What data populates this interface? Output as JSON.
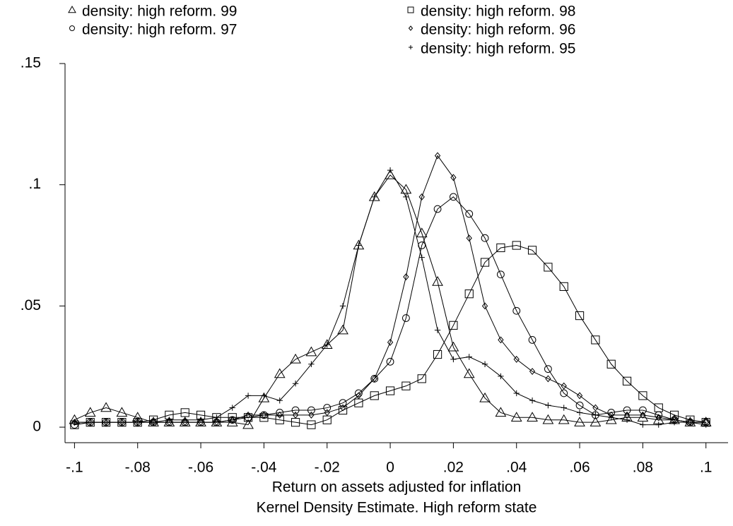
{
  "chart_data": {
    "type": "line",
    "title": "Kernel Density Estimate. High reform state",
    "xlabel": "Return on assets adjusted for inflation",
    "x": [
      -0.1,
      -0.095,
      -0.09,
      -0.085,
      -0.08,
      -0.075,
      -0.07,
      -0.065,
      -0.06,
      -0.055,
      -0.05,
      -0.045,
      -0.04,
      -0.035,
      -0.03,
      -0.025,
      -0.02,
      -0.015,
      -0.01,
      -0.005,
      0,
      0.005,
      0.01,
      0.015,
      0.02,
      0.025,
      0.03,
      0.035,
      0.04,
      0.045,
      0.05,
      0.055,
      0.06,
      0.065,
      0.07,
      0.075,
      0.08,
      0.085,
      0.09,
      0.095,
      0.1
    ],
    "series": [
      {
        "name": "density: high reform. 99",
        "color": "#000000",
        "marker": "triangle",
        "values": [
          0.003,
          0.006,
          0.008,
          0.006,
          0.004,
          0.002,
          0.002,
          0.002,
          0.002,
          0.002,
          0.002,
          0.001,
          0.012,
          0.022,
          0.028,
          0.031,
          0.034,
          0.04,
          0.075,
          0.095,
          0.104,
          0.098,
          0.08,
          0.06,
          0.033,
          0.022,
          0.012,
          0.006,
          0.004,
          0.004,
          0.003,
          0.003,
          0.002,
          0.002,
          0.003,
          0.004,
          0.004,
          0.003,
          0.003,
          0.002,
          0.002
        ]
      },
      {
        "name": "density: high reform. 98",
        "color": "#000000",
        "marker": "square",
        "values": [
          0.001,
          0.002,
          0.002,
          0.002,
          0.002,
          0.003,
          0.005,
          0.006,
          0.005,
          0.004,
          0.004,
          0.004,
          0.004,
          0.003,
          0.002,
          0.001,
          0.003,
          0.007,
          0.01,
          0.013,
          0.015,
          0.017,
          0.02,
          0.03,
          0.042,
          0.055,
          0.068,
          0.074,
          0.075,
          0.073,
          0.066,
          0.058,
          0.046,
          0.036,
          0.026,
          0.019,
          0.013,
          0.008,
          0.005,
          0.003,
          0.002
        ]
      },
      {
        "name": "density: high reform. 97",
        "color": "#000000",
        "marker": "circle",
        "values": [
          0.001,
          0.002,
          0.002,
          0.002,
          0.002,
          0.002,
          0.002,
          0.002,
          0.002,
          0.002,
          0.003,
          0.004,
          0.005,
          0.006,
          0.007,
          0.007,
          0.008,
          0.01,
          0.014,
          0.02,
          0.027,
          0.045,
          0.075,
          0.09,
          0.095,
          0.088,
          0.078,
          0.063,
          0.048,
          0.036,
          0.024,
          0.014,
          0.009,
          0.005,
          0.006,
          0.007,
          0.007,
          0.005,
          0.003,
          0.002,
          0.002
        ]
      },
      {
        "name": "density: high reform. 96",
        "color": "#000000",
        "marker": "diamond",
        "values": [
          0.002,
          0.002,
          0.002,
          0.002,
          0.002,
          0.002,
          0.002,
          0.002,
          0.002,
          0.002,
          0.003,
          0.005,
          0.005,
          0.005,
          0.005,
          0.005,
          0.006,
          0.008,
          0.013,
          0.02,
          0.035,
          0.062,
          0.095,
          0.112,
          0.103,
          0.078,
          0.05,
          0.036,
          0.028,
          0.023,
          0.02,
          0.017,
          0.013,
          0.008,
          0.005,
          0.005,
          0.005,
          0.004,
          0.003,
          0.002,
          0.002
        ]
      },
      {
        "name": "density: high reform. 95",
        "color": "#000000",
        "marker": "plus",
        "values": [
          0.002,
          0.002,
          0.002,
          0.002,
          0.002,
          0.002,
          0.003,
          0.003,
          0.003,
          0.004,
          0.008,
          0.013,
          0.013,
          0.011,
          0.018,
          0.026,
          0.034,
          0.05,
          0.075,
          0.095,
          0.106,
          0.095,
          0.07,
          0.04,
          0.028,
          0.029,
          0.026,
          0.021,
          0.014,
          0.011,
          0.009,
          0.008,
          0.006,
          0.005,
          0.004,
          0.003,
          0.001,
          0.001,
          0.002,
          0.002,
          0.001
        ]
      }
    ],
    "xlim": [
      -0.103,
      0.107
    ],
    "ylim": [
      -0.0064,
      0.15
    ],
    "xticks": [
      {
        "value": -0.1,
        "label": "-.1"
      },
      {
        "value": -0.08,
        "label": "-.08"
      },
      {
        "value": -0.06,
        "label": "-.06"
      },
      {
        "value": -0.04,
        "label": "-.04"
      },
      {
        "value": -0.02,
        "label": "-.02"
      },
      0,
      {
        "value": 0.02,
        "label": ".02"
      },
      {
        "value": 0.04,
        "label": ".04"
      },
      {
        "value": 0.06,
        "label": ".06"
      },
      {
        "value": 0.08,
        "label": ".08"
      },
      {
        "value": 0.1,
        "label": ".1"
      }
    ],
    "yticks": [
      0,
      {
        "value": 0.05,
        "label": ".05"
      },
      {
        "value": 0.1,
        "label": ".1"
      },
      {
        "value": 0.15,
        "label": ".15"
      }
    ],
    "grid": false,
    "legend": "top"
  }
}
